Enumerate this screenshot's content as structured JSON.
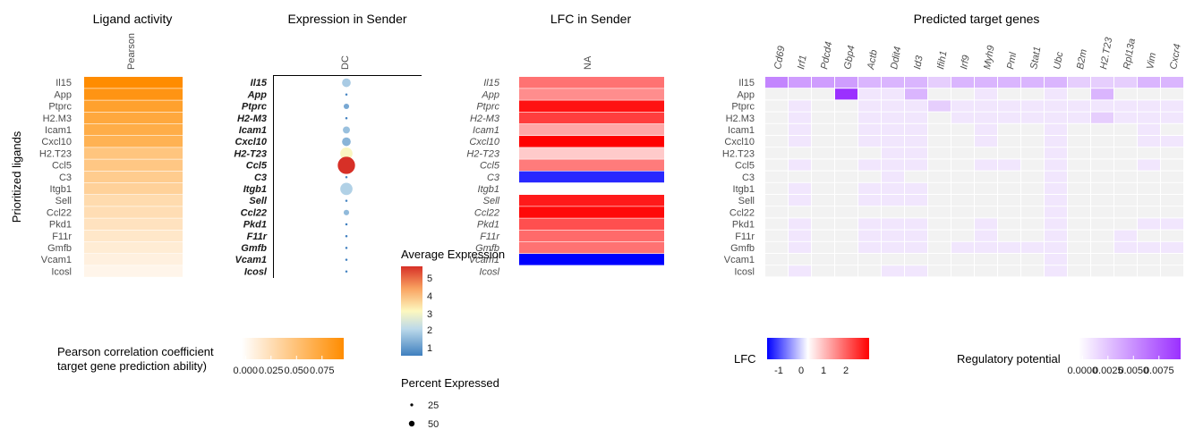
{
  "panels": {
    "activity": {
      "title": "Ligand activity",
      "column": "Pearson"
    },
    "expression": {
      "title": "Expression in Sender",
      "column": "DC"
    },
    "lfc": {
      "title": "LFC in Sender",
      "column": "NA"
    },
    "targets": {
      "title": "Predicted target genes"
    }
  },
  "y_axis_title": "Prioritized ligands",
  "legends": {
    "pearson": {
      "title_line1": "Pearson correlation coefficient",
      "title_line2": "target gene prediction ability)",
      "ticks": [
        "0.000",
        "0.025",
        "0.050",
        "0.075"
      ]
    },
    "avg_expr": {
      "title": "Average Expression",
      "ticks": [
        "5",
        "4",
        "3",
        "2",
        "1"
      ]
    },
    "pct_expr": {
      "title": "Percent Expressed",
      "ticks": [
        "25",
        "50"
      ]
    },
    "lfc": {
      "title": "LFC",
      "ticks": [
        "-1",
        "0",
        "1",
        "2"
      ]
    },
    "regulatory": {
      "title": "Regulatory potential",
      "ticks": [
        "0.0000",
        "0.0025",
        "0.0050",
        "0.0075"
      ]
    }
  },
  "chart_data": [
    {
      "type": "heatmap",
      "title": "Ligand activity",
      "rows": [
        "Il15",
        "App",
        "Ptprc",
        "H2.M3",
        "Icam1",
        "Cxcl10",
        "H2.T23",
        "Ccl5",
        "C3",
        "Itgb1",
        "Sell",
        "Ccl22",
        "Pkd1",
        "F11r",
        "Gmfb",
        "Vcam1",
        "Icosl"
      ],
      "columns": [
        "Pearson"
      ],
      "values": [
        0.095,
        0.088,
        0.078,
        0.072,
        0.068,
        0.064,
        0.048,
        0.046,
        0.042,
        0.038,
        0.03,
        0.028,
        0.024,
        0.02,
        0.016,
        0.012,
        0.008
      ],
      "range": [
        0,
        0.095
      ],
      "colors": [
        "#ffffff",
        "#ff8c00"
      ]
    },
    {
      "type": "scatter",
      "title": "Expression in Sender",
      "rows_display": [
        "Il15",
        "App",
        "Ptprc",
        "H2-M3",
        "Icam1",
        "Cxcl10",
        "H2-T23",
        "Ccl5",
        "C3",
        "Itgb1",
        "Sell",
        "Ccl22",
        "Pkd1",
        "F11r",
        "Gmfb",
        "Vcam1",
        "Icosl"
      ],
      "column": "DC",
      "avg_expression": [
        1.8,
        0.6,
        1.2,
        0.5,
        1.6,
        1.4,
        3.0,
        5.6,
        0.6,
        1.9,
        0.6,
        1.5,
        0.5,
        0.5,
        0.5,
        0.5,
        0.6
      ],
      "pct_expressed": [
        15,
        1,
        6,
        1,
        10,
        15,
        30,
        60,
        1,
        30,
        1,
        6,
        1,
        1,
        1,
        1,
        1
      ],
      "expression_range": [
        0.5,
        5.6
      ]
    },
    {
      "type": "heatmap",
      "title": "LFC in Sender",
      "rows_display": [
        "Il15",
        "App",
        "Ptprc",
        "H2-M3",
        "Icam1",
        "Cxcl10",
        "H2-T23",
        "Ccl5",
        "C3",
        "Itgb1",
        "Sell",
        "Ccl22",
        "Pkd1",
        "F11r",
        "Gmfb",
        "Vcam1",
        "Icosl"
      ],
      "column": "NA",
      "values": [
        1.6,
        1.3,
        2.7,
        2.2,
        1.0,
        2.9,
        0.6,
        1.5,
        -1.6,
        null,
        2.6,
        2.8,
        2.0,
        1.7,
        1.6,
        -1.9,
        null
      ],
      "range": [
        -1.9,
        2.9
      ],
      "colors": [
        "#0000ff",
        "#ffffff",
        "#ff0000"
      ]
    },
    {
      "type": "heatmap",
      "title": "Predicted target genes",
      "rows": [
        "Il15",
        "App",
        "Ptprc",
        "H2.M3",
        "Icam1",
        "Cxcl10",
        "H2.T23",
        "Ccl5",
        "C3",
        "Itgb1",
        "Sell",
        "Ccl22",
        "Pkd1",
        "F11r",
        "Gmfb",
        "Vcam1",
        "Icosl"
      ],
      "columns": [
        "Cd69",
        "Irf1",
        "Pdcd4",
        "Gbp4",
        "Actb",
        "Ddit4",
        "Id3",
        "Ifih1",
        "Irf9",
        "Myh9",
        "Pml",
        "Stat1",
        "Ubc",
        "B2m",
        "H2.T23",
        "Rpl13a",
        "Vim",
        "Cxcr4"
      ],
      "values": [
        [
          0.005,
          0.004,
          0.004,
          0.004,
          0.003,
          0.003,
          0.003,
          0.002,
          0.003,
          0.003,
          0.003,
          0.003,
          0.003,
          0.002,
          0.002,
          0.002,
          0.003,
          0.003
        ],
        [
          0,
          0,
          0,
          0.0085,
          0.001,
          0.001,
          0.003,
          0,
          0,
          0.001,
          0,
          0,
          0.001,
          0,
          0.003,
          0,
          0,
          0
        ],
        [
          0,
          0.001,
          0,
          0,
          0.001,
          0.001,
          0.001,
          0.002,
          0.001,
          0.001,
          0.001,
          0.001,
          0.001,
          0.001,
          0.001,
          0.001,
          0.001,
          0.001
        ],
        [
          0,
          0.001,
          0,
          0,
          0.001,
          0.001,
          0.001,
          0,
          0.001,
          0.001,
          0.001,
          0.001,
          0.001,
          0.001,
          0.002,
          0.001,
          0.001,
          0.001
        ],
        [
          0,
          0.001,
          0,
          0,
          0.001,
          0.001,
          0.001,
          0,
          0,
          0.001,
          0,
          0,
          0.001,
          0,
          0,
          0,
          0.001,
          0
        ],
        [
          0,
          0.001,
          0,
          0,
          0.001,
          0.001,
          0.001,
          0,
          0,
          0.001,
          0,
          0,
          0.001,
          0,
          0,
          0,
          0.001,
          0.001
        ],
        [
          0,
          0,
          0,
          0,
          0,
          0.001,
          0.001,
          0,
          0,
          0,
          0,
          0,
          0.001,
          0,
          0,
          0,
          0,
          0
        ],
        [
          0,
          0.001,
          0,
          0,
          0.001,
          0.001,
          0.001,
          0,
          0,
          0.001,
          0.001,
          0,
          0.001,
          0,
          0,
          0,
          0.001,
          0
        ],
        [
          0,
          0,
          0,
          0,
          0,
          0.001,
          0,
          0,
          0,
          0,
          0,
          0,
          0.001,
          0,
          0,
          0,
          0,
          0
        ],
        [
          0,
          0.001,
          0,
          0,
          0.001,
          0.001,
          0.001,
          0,
          0,
          0,
          0,
          0,
          0.001,
          0,
          0,
          0,
          0,
          0
        ],
        [
          0,
          0.001,
          0,
          0,
          0.001,
          0.001,
          0.001,
          0,
          0,
          0,
          0,
          0,
          0.001,
          0,
          0,
          0,
          0,
          0
        ],
        [
          0,
          0,
          0,
          0,
          0,
          0,
          0,
          0,
          0,
          0,
          0,
          0,
          0.001,
          0,
          0,
          0,
          0,
          0
        ],
        [
          0,
          0.001,
          0,
          0,
          0.001,
          0.001,
          0.001,
          0,
          0,
          0.001,
          0,
          0,
          0.001,
          0,
          0,
          0,
          0.001,
          0.001
        ],
        [
          0,
          0.001,
          0,
          0,
          0.001,
          0.001,
          0.001,
          0,
          0,
          0.001,
          0,
          0,
          0.001,
          0,
          0,
          0.001,
          0,
          0
        ],
        [
          0,
          0.001,
          0,
          0,
          0.001,
          0.001,
          0.001,
          0,
          0.001,
          0.001,
          0.001,
          0.001,
          0.001,
          0,
          0,
          0.001,
          0.001,
          0.001
        ],
        [
          0,
          0,
          0,
          0,
          0,
          0,
          0,
          0,
          0,
          0,
          0,
          0,
          0.001,
          0,
          0,
          0,
          0,
          0
        ],
        [
          0,
          0.001,
          0,
          0,
          0,
          0.001,
          0.001,
          0,
          0,
          0,
          0,
          0,
          0.001,
          0,
          0,
          0,
          0,
          0
        ]
      ],
      "range": [
        0,
        0.0085
      ],
      "colors": [
        "#ffffff",
        "#9b30ff"
      ]
    }
  ]
}
